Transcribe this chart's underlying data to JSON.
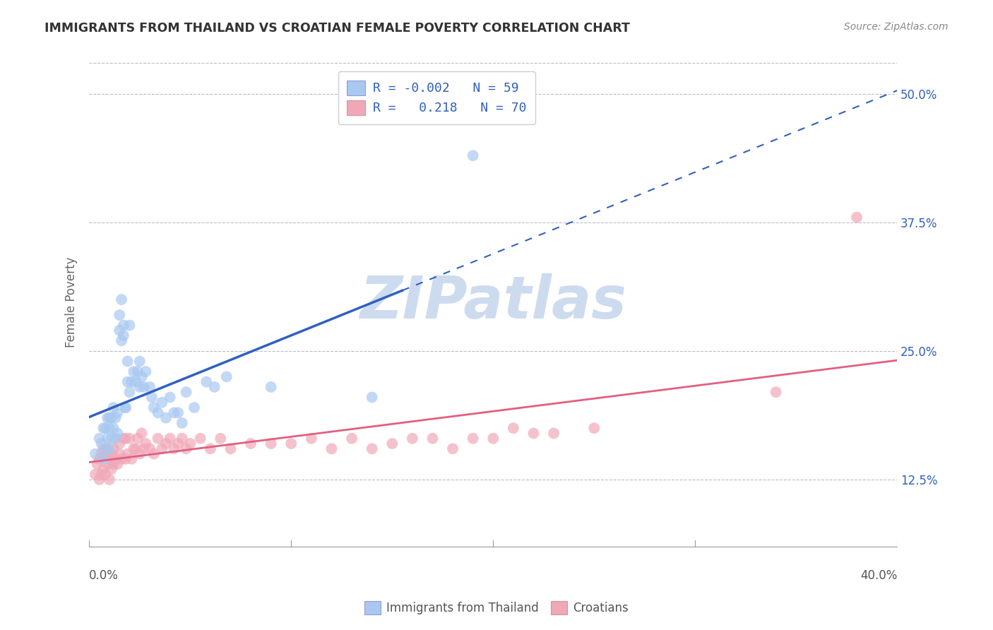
{
  "title": "IMMIGRANTS FROM THAILAND VS CROATIAN FEMALE POVERTY CORRELATION CHART",
  "source_text": "Source: ZipAtlas.com",
  "ylabel": "Female Poverty",
  "x_min": 0.0,
  "x_max": 0.4,
  "y_min": 0.06,
  "y_max": 0.535,
  "y_ticks": [
    0.125,
    0.25,
    0.375,
    0.5
  ],
  "y_tick_labels": [
    "12.5%",
    "25.0%",
    "37.5%",
    "50.0%"
  ],
  "blue_color": "#A8C8F0",
  "pink_color": "#F0A8B8",
  "blue_line_color": "#3060C0",
  "pink_line_color": "#E06080",
  "label1": "Immigrants from Thailand",
  "label2": "Croatians",
  "watermark": "ZIPatlas",
  "background_color": "#FFFFFF",
  "grid_color": "#BBBBCC",
  "title_color": "#333333",
  "axis_label_color": "#666666",
  "blue_r": "-0.002",
  "blue_n": "59",
  "pink_r": "0.218",
  "pink_n": "70",
  "blue_line_solid_end": 0.155,
  "blue_scatter_x": [
    0.003,
    0.005,
    0.006,
    0.007,
    0.007,
    0.008,
    0.008,
    0.009,
    0.009,
    0.01,
    0.01,
    0.01,
    0.011,
    0.011,
    0.012,
    0.012,
    0.013,
    0.013,
    0.014,
    0.014,
    0.015,
    0.015,
    0.016,
    0.016,
    0.017,
    0.017,
    0.018,
    0.018,
    0.019,
    0.019,
    0.02,
    0.02,
    0.021,
    0.022,
    0.023,
    0.024,
    0.025,
    0.025,
    0.026,
    0.027,
    0.028,
    0.03,
    0.031,
    0.032,
    0.034,
    0.036,
    0.038,
    0.04,
    0.042,
    0.044,
    0.046,
    0.048,
    0.052,
    0.058,
    0.062,
    0.068,
    0.09,
    0.14,
    0.19
  ],
  "blue_scatter_y": [
    0.15,
    0.165,
    0.16,
    0.175,
    0.145,
    0.155,
    0.175,
    0.185,
    0.165,
    0.185,
    0.175,
    0.155,
    0.165,
    0.185,
    0.175,
    0.195,
    0.165,
    0.185,
    0.19,
    0.17,
    0.285,
    0.27,
    0.3,
    0.26,
    0.275,
    0.265,
    0.195,
    0.195,
    0.24,
    0.22,
    0.275,
    0.21,
    0.22,
    0.23,
    0.22,
    0.23,
    0.215,
    0.24,
    0.225,
    0.215,
    0.23,
    0.215,
    0.205,
    0.195,
    0.19,
    0.2,
    0.185,
    0.205,
    0.19,
    0.19,
    0.18,
    0.21,
    0.195,
    0.22,
    0.215,
    0.225,
    0.215,
    0.205,
    0.44
  ],
  "pink_scatter_x": [
    0.003,
    0.004,
    0.005,
    0.005,
    0.006,
    0.006,
    0.007,
    0.007,
    0.008,
    0.008,
    0.009,
    0.009,
    0.01,
    0.01,
    0.011,
    0.011,
    0.012,
    0.012,
    0.013,
    0.014,
    0.015,
    0.015,
    0.016,
    0.017,
    0.018,
    0.018,
    0.019,
    0.02,
    0.021,
    0.022,
    0.023,
    0.024,
    0.025,
    0.026,
    0.027,
    0.028,
    0.03,
    0.032,
    0.034,
    0.036,
    0.038,
    0.04,
    0.042,
    0.044,
    0.046,
    0.048,
    0.05,
    0.055,
    0.06,
    0.065,
    0.07,
    0.08,
    0.09,
    0.1,
    0.11,
    0.12,
    0.13,
    0.14,
    0.15,
    0.16,
    0.17,
    0.18,
    0.19,
    0.2,
    0.21,
    0.22,
    0.23,
    0.25,
    0.34,
    0.38
  ],
  "pink_scatter_y": [
    0.13,
    0.14,
    0.125,
    0.145,
    0.13,
    0.15,
    0.135,
    0.155,
    0.13,
    0.15,
    0.14,
    0.155,
    0.125,
    0.145,
    0.135,
    0.15,
    0.14,
    0.155,
    0.145,
    0.14,
    0.15,
    0.16,
    0.145,
    0.165,
    0.145,
    0.165,
    0.15,
    0.165,
    0.145,
    0.155,
    0.155,
    0.165,
    0.15,
    0.17,
    0.155,
    0.16,
    0.155,
    0.15,
    0.165,
    0.155,
    0.16,
    0.165,
    0.155,
    0.16,
    0.165,
    0.155,
    0.16,
    0.165,
    0.155,
    0.165,
    0.155,
    0.16,
    0.16,
    0.16,
    0.165,
    0.155,
    0.165,
    0.155,
    0.16,
    0.165,
    0.165,
    0.155,
    0.165,
    0.165,
    0.175,
    0.17,
    0.17,
    0.175,
    0.21,
    0.38
  ]
}
